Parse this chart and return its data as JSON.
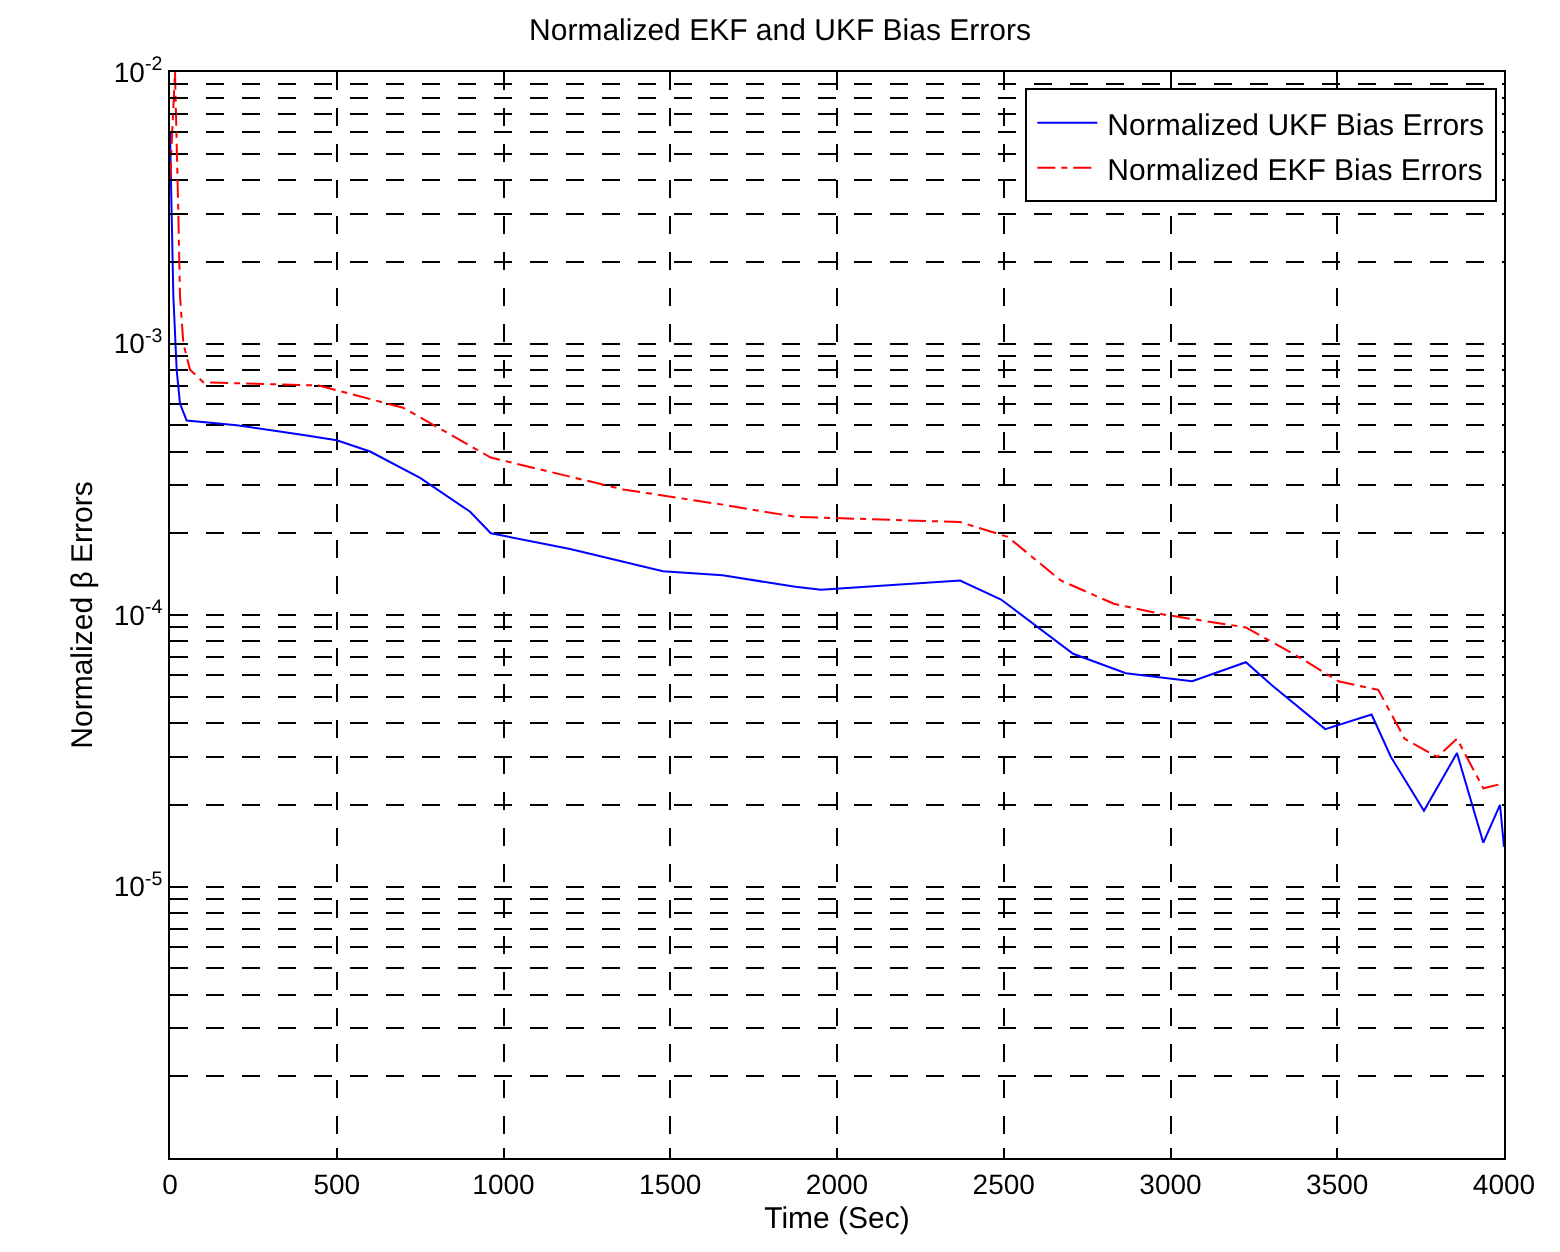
{
  "chart_data": {
    "type": "line",
    "title": "Normalized EKF and UKF Bias Errors",
    "xlabel": "Time (Sec)",
    "ylabel": "Normalized β Errors",
    "xlim": [
      0,
      4000
    ],
    "xticks": [
      0,
      500,
      1000,
      1500,
      2000,
      2500,
      3000,
      3500,
      4000
    ],
    "ylim": [
      1e-06,
      0.01
    ],
    "yticks": [
      {
        "value": 0.01,
        "label": "10$^{-2}$"
      },
      {
        "value": 0.001,
        "label": "10$^{-3}$"
      },
      {
        "value": 0.0001,
        "label": "10$^{-4}$"
      },
      {
        "value": 1e-05,
        "label": "10$^{-5}$"
      }
    ],
    "log": true,
    "grid": true,
    "legend": "top right",
    "series": [
      {
        "name": "Normalized UKF Bias Errors",
        "color": "#0000ff",
        "line_style": "solid",
        "x": [
          0,
          5,
          10,
          20,
          30,
          50,
          200,
          400,
          500,
          600,
          750,
          900,
          962,
          1200,
          1478,
          1657,
          1875,
          1952,
          2369,
          2492,
          2708,
          2866,
          3065,
          3226,
          3305,
          3464,
          3603,
          3661,
          3760,
          3859,
          3938,
          3988,
          4000
        ],
        "values": [
          0.006,
          0.003,
          0.0015,
          0.0008,
          0.0006,
          0.00052,
          0.0005,
          0.00046,
          0.00044,
          0.0004,
          0.00032,
          0.00024,
          0.0002,
          0.000175,
          0.000145,
          0.00014,
          0.000127,
          0.000124,
          0.000134,
          0.000114,
          7.2e-05,
          6.1e-05,
          5.7e-05,
          6.7e-05,
          5.5e-05,
          3.8e-05,
          4.3e-05,
          3e-05,
          1.9e-05,
          3.1e-05,
          1.45e-05,
          2e-05,
          1.4e-05
        ]
      },
      {
        "name": "Normalized EKF Bias Errors",
        "color": "#ff0000",
        "line_style": "dashed",
        "x": [
          0,
          15,
          25,
          30,
          40,
          60,
          100,
          446,
          699,
          962,
          1359,
          1657,
          1875,
          2369,
          2512,
          2671,
          2830,
          2988,
          3226,
          3385,
          3504,
          3623,
          3702,
          3800,
          3859,
          3938,
          4000
        ],
        "values": [
          0.004,
          0.01,
          0.003,
          0.0015,
          0.001,
          0.0008,
          0.00072,
          0.0007,
          0.00058,
          0.00038,
          0.00029,
          0.000255,
          0.00023,
          0.00022,
          0.000194,
          0.000134,
          0.00011,
          0.0001,
          9e-05,
          7e-05,
          5.7e-05,
          5.3e-05,
          3.5e-05,
          3e-05,
          3.5e-05,
          2.3e-05,
          2.4e-05
        ]
      }
    ]
  }
}
